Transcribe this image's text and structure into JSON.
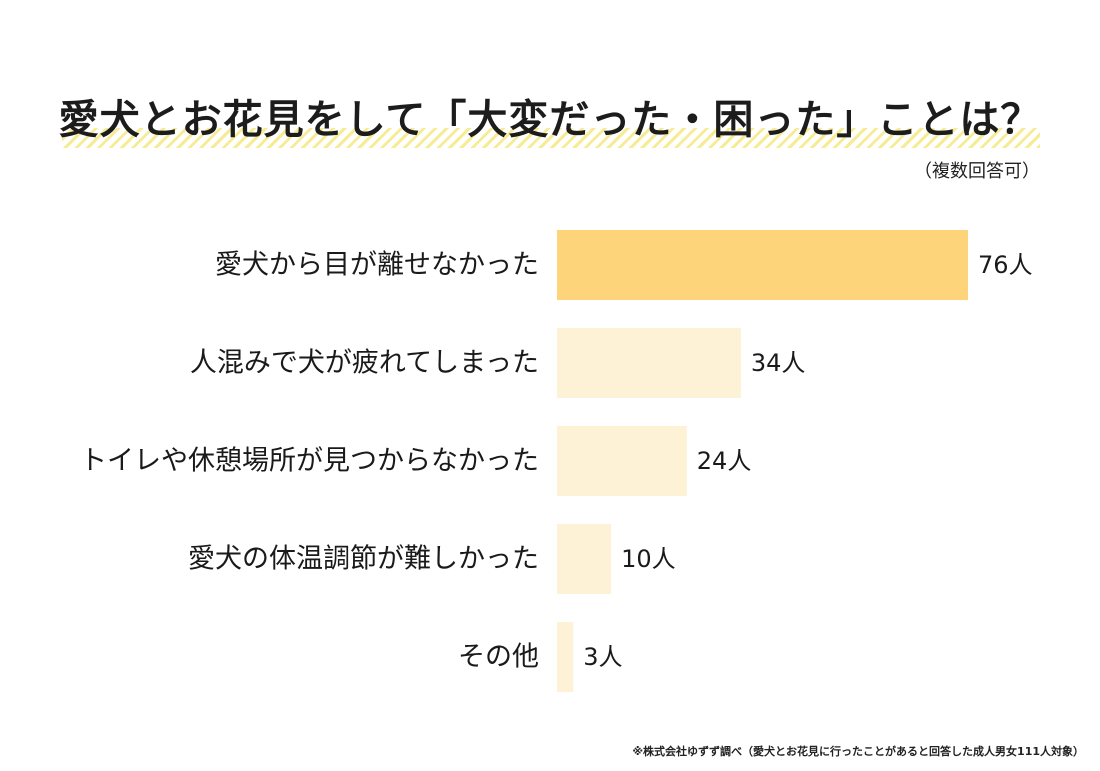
{
  "title": "愛犬とお花見をして「大変だった・困った」ことは？",
  "subtitle": "（複数回答可）",
  "footnote": "※株式会社ゆずず調べ（愛犬とお花見に行ったことがあると回答した成人男女111人対象）",
  "colors": {
    "highlight_bar": "#fdd47a",
    "bar": "#fdf1d6",
    "title_stripe": "#f6ec96",
    "text": "#1a1a1a"
  },
  "chart_data": {
    "type": "bar",
    "orientation": "horizontal",
    "categories": [
      "愛犬から目が離せなかった",
      "人混みで犬が疲れてしまった",
      "トイレや休憩場所が見つからなかった",
      "愛犬の体温調節が難しかった",
      "その他"
    ],
    "values": [
      76,
      34,
      24,
      10,
      3
    ],
    "value_labels": [
      "76人",
      "34人",
      "24人",
      "10人",
      "3人"
    ],
    "unit": "人",
    "highlight_index": 0,
    "xlim": [
      0,
      76
    ],
    "grid": false,
    "legend": "none"
  }
}
